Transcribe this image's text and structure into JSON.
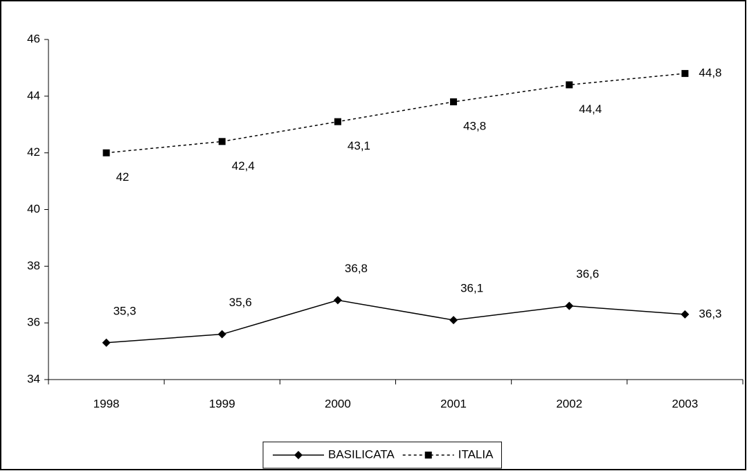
{
  "chart_data": {
    "type": "line",
    "categories": [
      "1998",
      "1999",
      "2000",
      "2001",
      "2002",
      "2003"
    ],
    "series": [
      {
        "name": "BASILICATA",
        "color": "#000000",
        "marker": "diamond",
        "dash": false,
        "values": [
          35.3,
          35.6,
          36.8,
          36.1,
          36.6,
          36.3
        ],
        "value_labels": [
          "35,3",
          "35,6",
          "36,8",
          "36,1",
          "36,6",
          "36,3"
        ]
      },
      {
        "name": "ITALIA",
        "color": "#000000",
        "marker": "square",
        "dash": true,
        "values": [
          42,
          42.4,
          43.1,
          43.8,
          44.4,
          44.8
        ],
        "value_labels": [
          "42",
          "42,4",
          "43,1",
          "43,8",
          "44,4",
          "44,8"
        ]
      }
    ],
    "ylim": [
      34,
      46
    ],
    "yticks": [
      34,
      36,
      38,
      40,
      42,
      44,
      46
    ],
    "grid": false,
    "legend": "bottom"
  }
}
